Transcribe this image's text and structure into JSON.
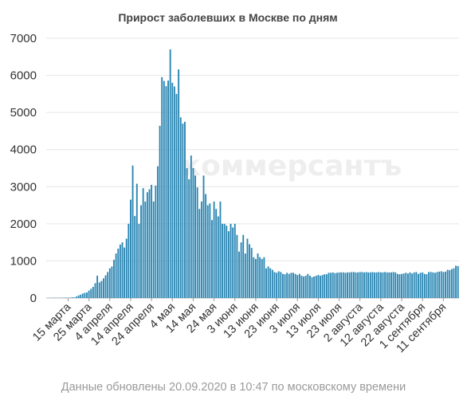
{
  "chart_data": {
    "type": "bar",
    "title": "Прирост заболевших в Москве по дням",
    "xlabel": "",
    "ylabel": "",
    "ylim": [
      0,
      7000
    ],
    "yticks": [
      0,
      1000,
      2000,
      3000,
      4000,
      5000,
      6000,
      7000
    ],
    "x_start": "2020-03-05",
    "x_tick_labels": [
      "15 марта",
      "25 марта",
      "4 апреля",
      "14 апреля",
      "24 апреля",
      "4 мая",
      "14 мая",
      "24 мая",
      "3 июня",
      "13 июня",
      "23 июня",
      "3 июля",
      "13 июля",
      "23 июля",
      "2 августа",
      "12 августа",
      "22 августа",
      "1 сентября",
      "11 сентября"
    ],
    "color": "#2a86b3",
    "values": [
      2,
      2,
      3,
      5,
      4,
      4,
      5,
      6,
      9,
      10,
      6,
      10,
      20,
      15,
      40,
      70,
      90,
      120,
      140,
      150,
      200,
      250,
      300,
      400,
      600,
      420,
      460,
      530,
      610,
      700,
      800,
      850,
      1030,
      1200,
      1330,
      1440,
      1500,
      1360,
      1600,
      2000,
      2650,
      3570,
      2210,
      3080,
      2000,
      2500,
      2960,
      2600,
      2850,
      2930,
      3050,
      2600,
      3030,
      3550,
      4640,
      5950,
      5850,
      5710,
      5860,
      6700,
      5800,
      5700,
      5500,
      6160,
      4870,
      4700,
      4750,
      3500,
      3200,
      3840,
      3500,
      3300,
      2980,
      2400,
      2600,
      3300,
      2800,
      2500,
      2550,
      2100,
      2600,
      2400,
      2200,
      2600,
      2000,
      2000,
      1950,
      1800,
      2000,
      1900,
      2000,
      1700,
      1250,
      1500,
      1700,
      1200,
      1600,
      1450,
      1350,
      1100,
      1050,
      1200,
      1100,
      1050,
      1100,
      800,
      850,
      800,
      760,
      700,
      680,
      720,
      700,
      650,
      640,
      680,
      650,
      680,
      680,
      650,
      620,
      650,
      600,
      580,
      600,
      650,
      600,
      560,
      580,
      600,
      620,
      600,
      620,
      640,
      640,
      680,
      680,
      690,
      670,
      680,
      690,
      690,
      690,
      680,
      690,
      690,
      700,
      700,
      690,
      690,
      700,
      700,
      690,
      700,
      690,
      690,
      700,
      690,
      690,
      700,
      690,
      690,
      700,
      690,
      690,
      690,
      700,
      690,
      650,
      640,
      650,
      660,
      680,
      660,
      690,
      660,
      690,
      700,
      650,
      680,
      690,
      650,
      640,
      700,
      700,
      690,
      680,
      700,
      710,
      720,
      700,
      710,
      760,
      750,
      780,
      800,
      870,
      860
    ]
  },
  "watermark": "коммерсантъ",
  "footer": "Данные обновлены 20.09.2020 в 10:47 по московскому времени"
}
